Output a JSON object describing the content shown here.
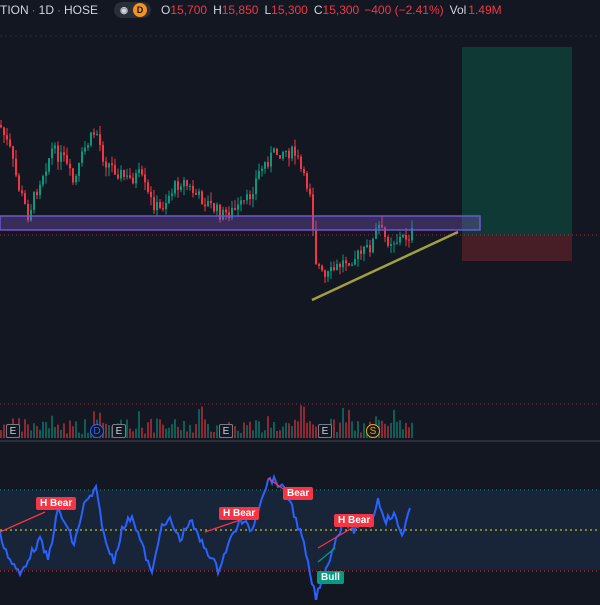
{
  "header": {
    "symbol": "TION",
    "interval": "1D",
    "exchange": "HOSE",
    "sep": "·",
    "badge_d": "D",
    "open_label": "O",
    "open": "15,700",
    "high_label": "H",
    "high": "15,850",
    "low_label": "L",
    "low": "15,300",
    "close_label": "C",
    "close": "15,300",
    "change": "−400 (−2.41%)",
    "vol_label": "Vol",
    "vol": "1.49M"
  },
  "events": {
    "earnings": "E",
    "dividend": "D",
    "split": "S"
  },
  "signals": {
    "h_bear": "H Bear",
    "bear": "Bear",
    "bull": "Bull"
  },
  "colors": {
    "background": "#131722",
    "up": "#089981",
    "down": "#f23645",
    "zone": "#7e57c2",
    "trendline": "#a0a040",
    "osc_line": "#2962ff",
    "dotted_mid": "#e6e600",
    "dotted_bound": "#f23645"
  }
}
